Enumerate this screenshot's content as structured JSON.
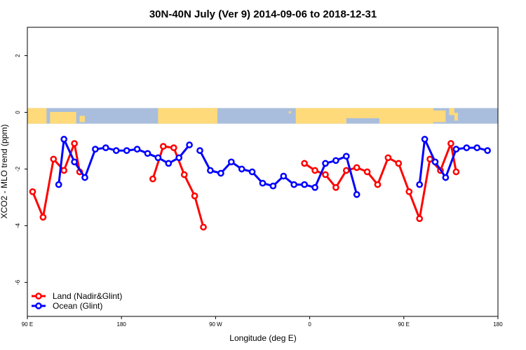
{
  "chart_data": {
    "type": "line",
    "title": "30N-40N July (Ver 9)   2014-09-06 to 2018-12-31",
    "xlabel": "Longitude (deg E)",
    "ylabel": "XCO2 - MLO trend (ppm)",
    "xlim": [
      -90,
      180
    ],
    "ylim": [
      -7.2,
      3.0
    ],
    "x_ticks": [
      {
        "value": -90,
        "label": "90 E"
      },
      {
        "value": -36,
        "label": "180"
      },
      {
        "value": 18,
        "label": "90 W"
      },
      {
        "value": 72,
        "label": "0"
      },
      {
        "value": 126,
        "label": "90 E"
      },
      {
        "value": 180,
        "label": "180"
      }
    ],
    "y_ticks": [
      {
        "value": 2,
        "label": "2"
      },
      {
        "value": 0,
        "label": "0"
      },
      {
        "value": -2,
        "label": "-2"
      },
      {
        "value": -4,
        "label": "-4"
      },
      {
        "value": -6,
        "label": "-6"
      }
    ],
    "map_band": {
      "y_top": 0.15,
      "y_bottom": -0.4,
      "ocean_color": "#A9BEDC",
      "land_color": "#FFDA7A"
    },
    "series": [
      {
        "name": "Land (Nadir&Glint)",
        "color": "#FF0000",
        "segments": [
          [
            [
              -87,
              -2.8
            ],
            [
              -81,
              -3.7
            ],
            [
              -75,
              -1.65
            ],
            [
              -69,
              -2.05
            ],
            [
              -63,
              -1.1
            ],
            [
              -60,
              -2.1
            ]
          ],
          [
            [
              -18,
              -2.35
            ],
            [
              -12,
              -1.2
            ],
            [
              -6,
              -1.25
            ],
            [
              0,
              -2.2
            ],
            [
              6,
              -2.95
            ],
            [
              11,
              -4.05
            ]
          ],
          [
            [
              69,
              -1.8
            ],
            [
              75,
              -2.05
            ],
            [
              81,
              -2.2
            ],
            [
              87,
              -2.65
            ],
            [
              93,
              -2.05
            ],
            [
              99,
              -1.95
            ],
            [
              105,
              -2.1
            ],
            [
              111,
              -2.55
            ],
            [
              117,
              -1.6
            ],
            [
              123,
              -1.8
            ],
            [
              129,
              -2.8
            ],
            [
              135,
              -3.75
            ],
            [
              141,
              -1.65
            ],
            [
              147,
              -2.05
            ],
            [
              153,
              -1.1
            ],
            [
              156,
              -2.1
            ]
          ]
        ]
      },
      {
        "name": "Ocean (Glint)",
        "color": "#0000FF",
        "segments": [
          [
            [
              -72,
              -2.55
            ],
            [
              -69,
              -0.95
            ],
            [
              -63,
              -1.75
            ],
            [
              -57,
              -2.3
            ],
            [
              -51,
              -1.3
            ],
            [
              -45,
              -1.25
            ],
            [
              -39,
              -1.35
            ],
            [
              -33,
              -1.35
            ],
            [
              -27,
              -1.3
            ],
            [
              -21,
              -1.45
            ],
            [
              -15,
              -1.6
            ],
            [
              -9,
              -1.8
            ],
            [
              -3,
              -1.6
            ],
            [
              3,
              -1.15
            ]
          ],
          [
            [
              9,
              -1.35
            ],
            [
              15,
              -2.05
            ],
            [
              21,
              -2.15
            ],
            [
              27,
              -1.75
            ],
            [
              33,
              -2.0
            ],
            [
              39,
              -2.1
            ],
            [
              45,
              -2.5
            ],
            [
              51,
              -2.6
            ],
            [
              57,
              -2.25
            ],
            [
              63,
              -2.55
            ],
            [
              69,
              -2.55
            ],
            [
              75,
              -2.65
            ],
            [
              81,
              -1.8
            ],
            [
              87,
              -1.7
            ],
            [
              93,
              -1.55
            ],
            [
              99,
              -2.9
            ]
          ],
          [
            [
              135,
              -2.55
            ],
            [
              138,
              -0.95
            ],
            [
              144,
              -1.75
            ],
            [
              150,
              -2.3
            ],
            [
              156,
              -1.3
            ],
            [
              162,
              -1.25
            ],
            [
              168,
              -1.25
            ],
            [
              174,
              -1.35
            ]
          ]
        ]
      }
    ],
    "legend": {
      "position": "bottom-left"
    },
    "grid": false
  }
}
